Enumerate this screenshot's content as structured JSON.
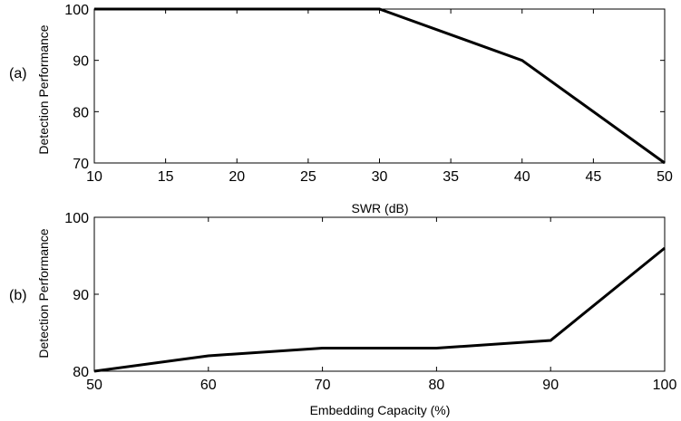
{
  "colors": {
    "line": "#000000",
    "axes": "#000000",
    "background": "#ffffff"
  },
  "chart_data": [
    {
      "type": "line",
      "panel_label": "(a)",
      "title": "",
      "xlabel": "SWR (dB)",
      "ylabel": "Detection Performance",
      "xlim": [
        10,
        50
      ],
      "ylim": [
        70,
        100
      ],
      "xticks": [
        10,
        15,
        20,
        25,
        30,
        35,
        40,
        45,
        50
      ],
      "yticks": [
        70,
        80,
        90,
        100
      ],
      "grid": false,
      "series": [
        {
          "x": [
            10,
            30,
            40,
            50
          ],
          "y": [
            100,
            100,
            90,
            70
          ]
        }
      ]
    },
    {
      "type": "line",
      "panel_label": "(b)",
      "title": "",
      "xlabel": "Embedding Capacity (%)",
      "ylabel": "Detection Performance",
      "xlim": [
        50,
        100
      ],
      "ylim": [
        80,
        100
      ],
      "xticks": [
        50,
        60,
        70,
        80,
        90,
        100
      ],
      "yticks": [
        80,
        90,
        100
      ],
      "grid": false,
      "series": [
        {
          "x": [
            50,
            60,
            70,
            80,
            90,
            100
          ],
          "y": [
            80,
            82,
            83,
            83,
            84,
            96
          ]
        }
      ]
    }
  ]
}
